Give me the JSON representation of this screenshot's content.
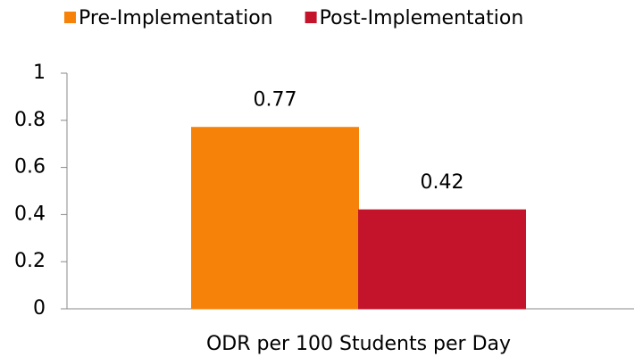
{
  "chart_data": {
    "type": "bar",
    "categories": [
      "ODR per 100 Students per Day"
    ],
    "series": [
      {
        "name": "Pre-Implementation",
        "color": "#f7820a",
        "values": [
          0.77
        ]
      },
      {
        "name": "Post-Implementation",
        "color": "#c3142b",
        "values": [
          0.42
        ]
      }
    ],
    "ylim": [
      0,
      1
    ],
    "yticks": [
      0,
      0.2,
      0.4,
      0.6,
      0.8,
      1
    ],
    "grid": false,
    "legend": "top"
  }
}
